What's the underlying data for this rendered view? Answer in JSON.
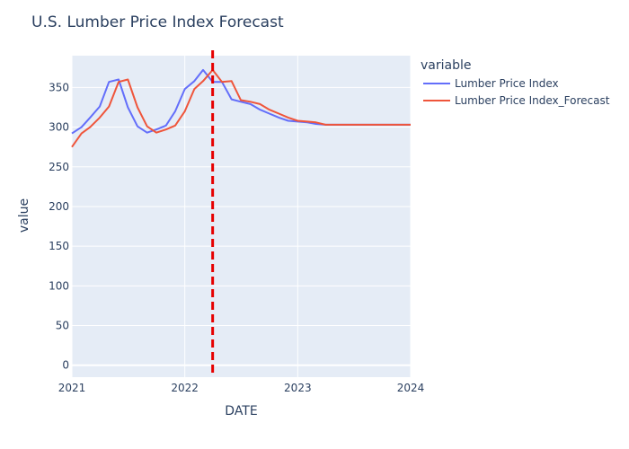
{
  "chart_data": {
    "type": "line",
    "title": "U.S. Lumber Price Index Forecast",
    "xlabel": "DATE",
    "ylabel": "value",
    "xlim": [
      "2021-01-01",
      "2024-01-01"
    ],
    "ylim": [
      -15,
      390
    ],
    "x_ticks": [
      "2021",
      "2022",
      "2023",
      "2024"
    ],
    "y_ticks": [
      0,
      50,
      100,
      150,
      200,
      250,
      300,
      350
    ],
    "grid": true,
    "legend": {
      "title": "variable",
      "placement": "right"
    },
    "vertical_marker": {
      "x": "2022-04-01",
      "color": "#e60000",
      "style": "dashed"
    },
    "series": [
      {
        "name": "Lumber Price Index",
        "color": "#636efa",
        "points": [
          [
            "2021-01-01",
            292
          ],
          [
            "2021-02-01",
            300
          ],
          [
            "2021-03-01",
            312
          ],
          [
            "2021-04-01",
            326
          ],
          [
            "2021-05-01",
            357
          ],
          [
            "2021-06-01",
            360
          ],
          [
            "2021-07-01",
            325
          ],
          [
            "2021-08-01",
            301
          ],
          [
            "2021-09-01",
            293
          ],
          [
            "2021-10-01",
            297
          ],
          [
            "2021-11-01",
            302
          ],
          [
            "2021-12-01",
            320
          ],
          [
            "2022-01-01",
            348
          ],
          [
            "2022-02-01",
            358
          ],
          [
            "2022-03-01",
            372
          ],
          [
            "2022-04-01",
            357
          ],
          [
            "2022-05-01",
            357
          ],
          [
            "2022-06-01",
            335
          ],
          [
            "2022-07-01",
            332
          ],
          [
            "2022-08-01",
            329
          ],
          [
            "2022-09-01",
            322
          ],
          [
            "2022-10-01",
            317
          ],
          [
            "2022-11-01",
            312
          ],
          [
            "2022-12-01",
            308
          ],
          [
            "2023-01-01",
            307
          ],
          [
            "2023-02-01",
            306
          ],
          [
            "2023-03-01",
            304
          ],
          [
            "2023-04-01",
            303
          ],
          [
            "2023-06-01",
            303
          ],
          [
            "2023-09-01",
            303
          ],
          [
            "2024-01-01",
            303
          ]
        ]
      },
      {
        "name": "Lumber Price Index_Forecast",
        "color": "#ef553b",
        "points": [
          [
            "2021-01-01",
            275
          ],
          [
            "2021-02-01",
            292
          ],
          [
            "2021-03-01",
            300
          ],
          [
            "2021-04-01",
            312
          ],
          [
            "2021-05-01",
            326
          ],
          [
            "2021-06-01",
            357
          ],
          [
            "2021-07-01",
            360
          ],
          [
            "2021-08-01",
            325
          ],
          [
            "2021-09-01",
            301
          ],
          [
            "2021-10-01",
            293
          ],
          [
            "2021-11-01",
            297
          ],
          [
            "2021-12-01",
            302
          ],
          [
            "2022-01-01",
            320
          ],
          [
            "2022-02-01",
            348
          ],
          [
            "2022-03-01",
            358
          ],
          [
            "2022-04-01",
            372
          ],
          [
            "2022-05-01",
            357
          ],
          [
            "2022-06-01",
            358
          ],
          [
            "2022-07-01",
            334
          ],
          [
            "2022-08-01",
            332
          ],
          [
            "2022-09-01",
            329
          ],
          [
            "2022-10-01",
            322
          ],
          [
            "2022-11-01",
            317
          ],
          [
            "2022-12-01",
            312
          ],
          [
            "2023-01-01",
            308
          ],
          [
            "2023-02-01",
            307
          ],
          [
            "2023-03-01",
            306
          ],
          [
            "2023-04-01",
            303
          ],
          [
            "2023-06-01",
            303
          ],
          [
            "2023-09-01",
            303
          ],
          [
            "2024-01-01",
            303
          ]
        ]
      }
    ]
  }
}
